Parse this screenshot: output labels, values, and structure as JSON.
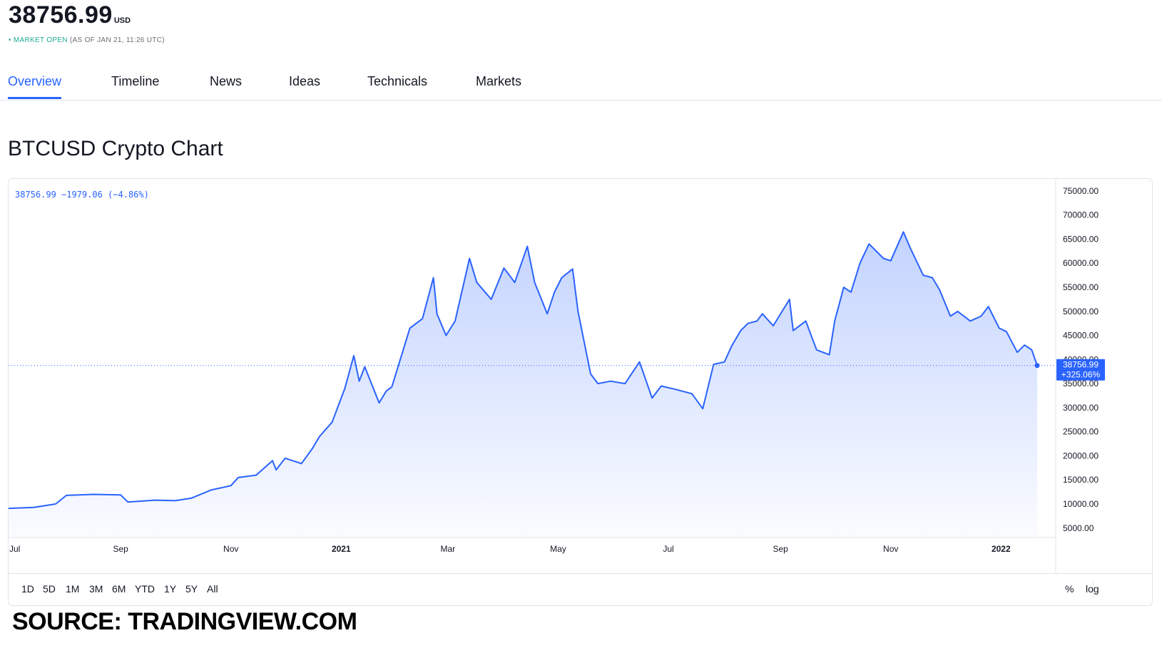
{
  "header": {
    "price": "38756.99",
    "currency": "USD",
    "status_dot": "•",
    "status_label": "MARKET OPEN",
    "status_time": "(AS OF JAN 21, 11:26 UTC)"
  },
  "tabs": [
    {
      "label": "Overview",
      "active": true
    },
    {
      "label": "Timeline",
      "active": false
    },
    {
      "label": "News",
      "active": false
    },
    {
      "label": "Ideas",
      "active": false
    },
    {
      "label": "Technicals",
      "active": false
    },
    {
      "label": "Markets",
      "active": false
    }
  ],
  "chart_title": "BTCUSD Crypto Chart",
  "chart_legend": "38756.99 −1979.06 (−4.86%)",
  "last_value_label": "38756.99",
  "last_change_label": "+325.06%",
  "range_buttons": [
    "1D",
    "5D",
    "1M",
    "3M",
    "6M",
    "YTD",
    "1Y",
    "5Y",
    "All"
  ],
  "scale_buttons": [
    "%",
    "log"
  ],
  "source": "SOURCE: TRADINGVIEW.COM",
  "colors": {
    "line": "#2962ff",
    "accent": "#2962ff",
    "market_open": "#22ab94"
  },
  "chart_data": {
    "type": "area",
    "title": "BTCUSD Crypto Chart",
    "xlabel": "",
    "ylabel": "",
    "ylim": [
      0,
      77000
    ],
    "x_tick_labels": [
      "Jul",
      "Sep",
      "Nov",
      "2021",
      "Mar",
      "May",
      "Jul",
      "Sep",
      "Nov",
      "2022"
    ],
    "y_tick_labels": [
      "5000.00",
      "10000.00",
      "15000.00",
      "20000.00",
      "25000.00",
      "30000.00",
      "35000.00",
      "40000.00",
      "45000.00",
      "50000.00",
      "55000.00",
      "60000.00",
      "65000.00",
      "70000.00",
      "75000.00"
    ],
    "y_ticks": [
      5000,
      10000,
      15000,
      20000,
      25000,
      30000,
      35000,
      40000,
      45000,
      50000,
      55000,
      60000,
      65000,
      70000,
      75000
    ],
    "grid": false,
    "series": [
      {
        "x": [
          "2020-07-01",
          "2020-07-15",
          "2020-07-27",
          "2020-08-02",
          "2020-08-17",
          "2020-09-01",
          "2020-09-05",
          "2020-09-20",
          "2020-10-01",
          "2020-10-10",
          "2020-10-21",
          "2020-11-01",
          "2020-11-05",
          "2020-11-15",
          "2020-11-24",
          "2020-11-26",
          "2020-12-01",
          "2020-12-10",
          "2020-12-16",
          "2020-12-20",
          "2020-12-27",
          "2021-01-03",
          "2021-01-08",
          "2021-01-11",
          "2021-01-14",
          "2021-01-22",
          "2021-01-26",
          "2021-01-29",
          "2021-02-08",
          "2021-02-15",
          "2021-02-21",
          "2021-02-23",
          "2021-02-28",
          "2021-03-05",
          "2021-03-13",
          "2021-03-17",
          "2021-03-25",
          "2021-04-01",
          "2021-04-07",
          "2021-04-14",
          "2021-04-18",
          "2021-04-25",
          "2021-04-29",
          "2021-05-03",
          "2021-05-09",
          "2021-05-12",
          "2021-05-19",
          "2021-05-23",
          "2021-05-30",
          "2021-06-07",
          "2021-06-15",
          "2021-06-22",
          "2021-06-27",
          "2021-07-05",
          "2021-07-14",
          "2021-07-20",
          "2021-07-26",
          "2021-08-01",
          "2021-08-05",
          "2021-08-10",
          "2021-08-14",
          "2021-08-19",
          "2021-08-22",
          "2021-08-28",
          "2021-09-06",
          "2021-09-08",
          "2021-09-15",
          "2021-09-21",
          "2021-09-28",
          "2021-10-01",
          "2021-10-06",
          "2021-10-10",
          "2021-10-15",
          "2021-10-20",
          "2021-10-28",
          "2021-11-01",
          "2021-11-08",
          "2021-11-12",
          "2021-11-19",
          "2021-11-24",
          "2021-11-28",
          "2021-12-04",
          "2021-12-08",
          "2021-12-15",
          "2021-12-21",
          "2021-12-25",
          "2021-12-31",
          "2022-01-04",
          "2022-01-10",
          "2022-01-14",
          "2022-01-18",
          "2022-01-21"
        ],
        "y": [
          9100,
          9300,
          10000,
          11800,
          12000,
          11900,
          10400,
          10800,
          10700,
          11200,
          12900,
          13800,
          15500,
          16000,
          19000,
          17100,
          19500,
          18400,
          21500,
          24000,
          27000,
          34000,
          40800,
          35500,
          38500,
          31000,
          33500,
          34300,
          46500,
          48500,
          57000,
          49500,
          45000,
          48000,
          61000,
          56000,
          52500,
          59000,
          56000,
          63500,
          56000,
          49500,
          54000,
          57000,
          58800,
          50000,
          37000,
          35000,
          35500,
          35000,
          39500,
          32000,
          34500,
          33800,
          32900,
          29800,
          39000,
          39500,
          42800,
          46000,
          47500,
          48000,
          49500,
          47000,
          52500,
          46000,
          48000,
          42000,
          41000,
          48000,
          55000,
          54000,
          60000,
          64000,
          61000,
          60500,
          66500,
          63000,
          57500,
          57000,
          54500,
          49000,
          50000,
          48000,
          49000,
          51000,
          46500,
          45800,
          41500,
          43000,
          42000,
          38757
        ]
      }
    ]
  }
}
